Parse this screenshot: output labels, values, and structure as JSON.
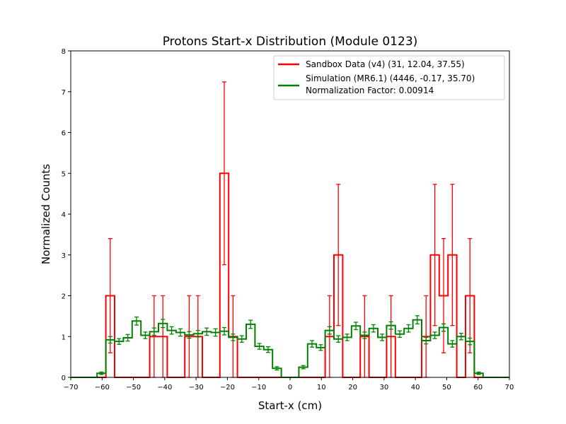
{
  "chart_data": {
    "type": "histogram",
    "title": "Protons Start-x Distribution (Module 0123)",
    "xlabel": "Start-x (cm)",
    "ylabel": "Normalized Counts",
    "xlim": [
      -70,
      70
    ],
    "ylim": [
      0,
      8
    ],
    "x_ticks": [
      "−70",
      "−60",
      "−50",
      "−40",
      "−30",
      "−20",
      "−10",
      "0",
      "10",
      "20",
      "30",
      "40",
      "50",
      "60",
      "70"
    ],
    "y_ticks": [
      "0",
      "1",
      "2",
      "3",
      "4",
      "5",
      "6",
      "7",
      "8"
    ],
    "grid": false,
    "legend_position": "top-right",
    "bin_edges": [
      -70,
      -67.2,
      -64.4,
      -61.6,
      -58.8,
      -56,
      -53.2,
      -50.4,
      -47.6,
      -44.8,
      -42,
      -39.2,
      -36.4,
      -33.6,
      -30.8,
      -28,
      -25.2,
      -22.4,
      -19.6,
      -16.8,
      -14,
      -11.2,
      -8.4,
      -5.6,
      -2.8,
      0,
      2.8,
      5.6,
      8.4,
      11.2,
      14,
      16.8,
      19.6,
      22.4,
      25.2,
      28,
      30.8,
      33.6,
      36.4,
      39.2,
      42,
      44.8,
      47.6,
      50.4,
      53.2,
      56,
      58.8,
      61.6,
      64.4,
      67.2,
      70
    ],
    "series": [
      {
        "name": "Sandbox Data (v4) (31, 12.04, 37.55)",
        "color": "#ff0000",
        "values": [
          0,
          0,
          0,
          0,
          2,
          0,
          0,
          0,
          0,
          1,
          1,
          0,
          0,
          1,
          1,
          0,
          0,
          5,
          1,
          0,
          0,
          0,
          0,
          0,
          0,
          0,
          0,
          0,
          0,
          1,
          3,
          0,
          0,
          1,
          0,
          0,
          1,
          0,
          0,
          0,
          1,
          3,
          2,
          3,
          0,
          2,
          0,
          0,
          0,
          0
        ],
        "errors_up": [
          0,
          0,
          0,
          0,
          1.4,
          0,
          0,
          0,
          0,
          1,
          1,
          0,
          0,
          1,
          1,
          0,
          0,
          2.24,
          1,
          0,
          0,
          0,
          0,
          0,
          0,
          0,
          0,
          0,
          0,
          1,
          1.73,
          0,
          0,
          1,
          0,
          0,
          1,
          0,
          0,
          0,
          1,
          1.73,
          1.4,
          1.73,
          0,
          1.4,
          0,
          0,
          0,
          0
        ],
        "errors_down": [
          0,
          0,
          0,
          0,
          1.4,
          0,
          0,
          0,
          0,
          1,
          1,
          0,
          0,
          1,
          1,
          0,
          0,
          2.24,
          1,
          0,
          0,
          0,
          0,
          0,
          0,
          0,
          0,
          0,
          0,
          1,
          1.73,
          0,
          0,
          1,
          0,
          0,
          1,
          0,
          0,
          0,
          1,
          1.73,
          1.4,
          1.73,
          0,
          1.4,
          0,
          0,
          0,
          0
        ]
      },
      {
        "name": "Simulation (MR6.1) (4446, -0.17, 35.70)",
        "color": "#008000",
        "values": [
          0,
          0,
          0,
          0.1,
          0.92,
          0.88,
          0.97,
          1.38,
          1.03,
          1.12,
          1.32,
          1.15,
          1.1,
          1.04,
          1.07,
          1.12,
          1.1,
          1.13,
          0.98,
          0.94,
          1.3,
          0.76,
          0.68,
          0.22,
          0,
          0,
          0.25,
          0.82,
          0.73,
          1.15,
          0.94,
          0.98,
          1.26,
          1.03,
          1.2,
          0.98,
          1.27,
          1.06,
          1.2,
          1.41,
          0.9,
          1.03,
          1.22,
          0.82,
          1,
          0.88,
          0.1,
          0,
          0,
          0
        ],
        "errors": [
          0,
          0,
          0,
          0.03,
          0.08,
          0.07,
          0.08,
          0.1,
          0.08,
          0.09,
          0.1,
          0.09,
          0.09,
          0.08,
          0.08,
          0.09,
          0.09,
          0.09,
          0.08,
          0.08,
          0.1,
          0.07,
          0.07,
          0.04,
          0,
          0,
          0.04,
          0.08,
          0.07,
          0.09,
          0.08,
          0.08,
          0.09,
          0.08,
          0.09,
          0.08,
          0.09,
          0.08,
          0.09,
          0.1,
          0.08,
          0.08,
          0.09,
          0.08,
          0.08,
          0.08,
          0.03,
          0,
          0,
          0
        ]
      }
    ],
    "legend_extra": "Normalization Factor: 0.00914"
  }
}
